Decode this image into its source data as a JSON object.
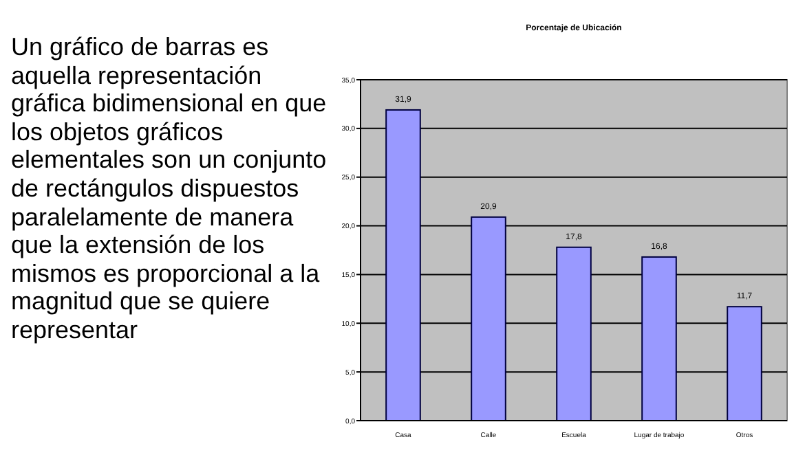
{
  "chart_data": [
    {
      "type": "other",
      "annotations": [
        "Un gráfico de barras es aquella representación gráfica bidimensional en que los objetos gráficos elementales son un conjunto de rectángulos dispuestos paralelamente de manera que la extensión de los mismos es proporcional a la magnitud que se quiere representar"
      ]
    },
    {
      "type": "bar",
      "title": "Porcentaje de Ubicación",
      "categories": [
        "Casa",
        "Calle",
        "Escuela",
        "Lugar de trabajo",
        "Otros"
      ],
      "values": [
        31.9,
        20.9,
        17.8,
        16.8,
        11.7
      ],
      "value_labels": [
        "31,9",
        "20,9",
        "17,8",
        "16,8",
        "11,7"
      ],
      "color": "#9999ff",
      "ylim": [
        0,
        35
      ],
      "yticks": [
        {
          "value": 0,
          "label": "0,0"
        },
        {
          "value": 5,
          "label": "5,0"
        },
        {
          "value": 10,
          "label": "10,0"
        },
        {
          "value": 15,
          "label": "15,0"
        },
        {
          "value": 20,
          "label": "20,0"
        },
        {
          "value": 25,
          "label": "25,0"
        },
        {
          "value": 30,
          "label": "30,0"
        },
        {
          "value": 35,
          "label": "35,0"
        }
      ],
      "grid": "y"
    }
  ]
}
